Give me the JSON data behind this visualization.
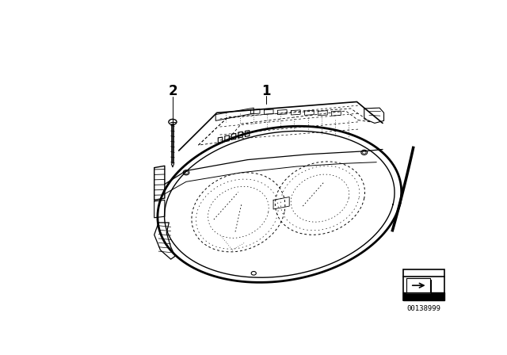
{
  "background_color": "#ffffff",
  "fig_width": 6.4,
  "fig_height": 4.48,
  "dpi": 100,
  "label_1_text": "1",
  "label_2_text": "2",
  "part_number": "00138999",
  "lc": "#000000"
}
